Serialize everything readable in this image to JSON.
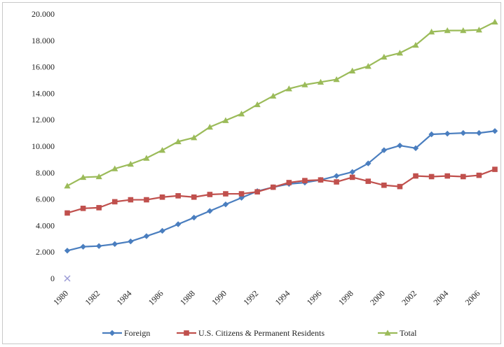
{
  "chart_data": {
    "type": "line",
    "title": "",
    "xlabel": "",
    "ylabel": "",
    "x": [
      1980,
      1981,
      1982,
      1983,
      1984,
      1985,
      1986,
      1987,
      1988,
      1989,
      1990,
      1991,
      1992,
      1993,
      1994,
      1995,
      1996,
      1997,
      1998,
      1999,
      2000,
      2001,
      2002,
      2003,
      2004,
      2005,
      2006,
      2007
    ],
    "xticks": [
      "1980",
      "1982",
      "1984",
      "1986",
      "1988",
      "1990",
      "1992",
      "1994",
      "1996",
      "1998",
      "2000",
      "2002",
      "2004",
      "2006"
    ],
    "yticks": [
      "0",
      "2.000",
      "4.000",
      "6.000",
      "8.000",
      "10.000",
      "12.000",
      "14.000",
      "16.000",
      "18.000",
      "20.000"
    ],
    "ylim": [
      0,
      20000
    ],
    "xlim": [
      1980,
      2007
    ],
    "grid": false,
    "legend_position": "bottom",
    "series": [
      {
        "name": "Foreign",
        "color": "#4a7ebf",
        "marker": "diamond",
        "values": [
          2100,
          2400,
          2450,
          2600,
          2800,
          3200,
          3600,
          4100,
          4600,
          5100,
          5600,
          6100,
          6600,
          6900,
          7150,
          7250,
          7450,
          7750,
          8050,
          8700,
          9700,
          10050,
          9850,
          10900,
          10950,
          11000,
          11000,
          11150
        ]
      },
      {
        "name": "U.S. Citizens & Permanent Residents",
        "color": "#c0504d",
        "marker": "square",
        "values": [
          4950,
          5300,
          5350,
          5800,
          5950,
          5950,
          6150,
          6250,
          6150,
          6350,
          6400,
          6400,
          6550,
          6900,
          7250,
          7400,
          7450,
          7300,
          7650,
          7350,
          7050,
          6950,
          7750,
          7700,
          7750,
          7700,
          7800,
          8250
        ]
      },
      {
        "name": "Total",
        "color": "#9bbb59",
        "marker": "triangle",
        "values": [
          7000,
          7650,
          7700,
          8300,
          8650,
          9100,
          9700,
          10350,
          10650,
          11450,
          11950,
          12450,
          13150,
          13800,
          14350,
          14650,
          14850,
          15050,
          15700,
          16050,
          16750,
          17050,
          17650,
          18650,
          18750,
          18750,
          18800,
          19400
        ]
      }
    ]
  }
}
